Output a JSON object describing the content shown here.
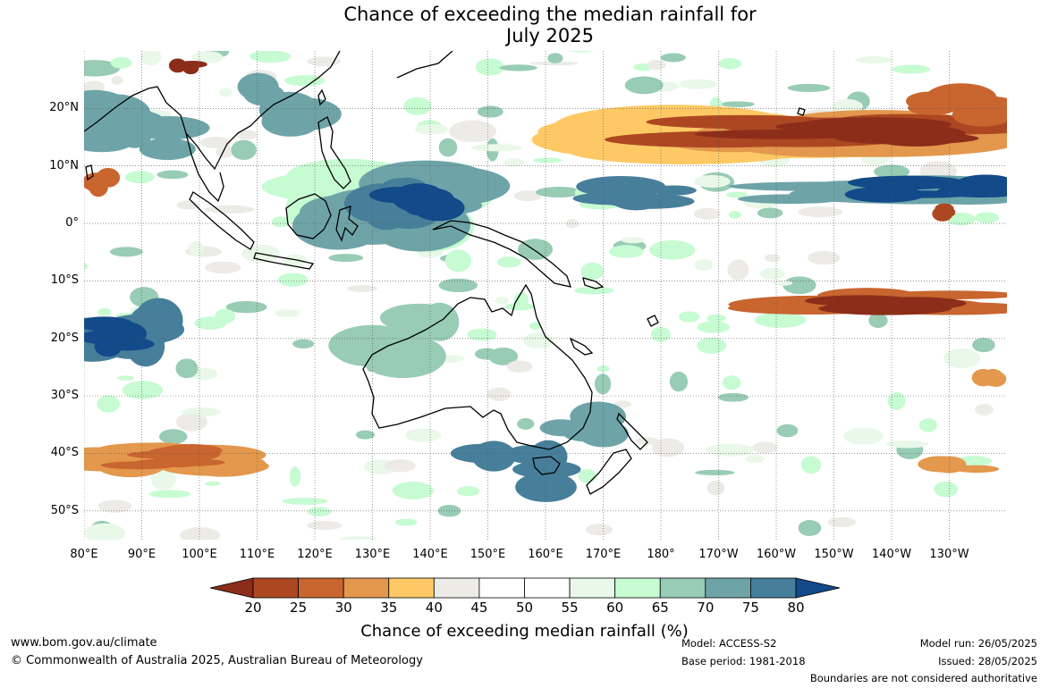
{
  "title": {
    "line1": "Chance of exceeding the median rainfall for",
    "line2": "July 2025"
  },
  "map": {
    "lat_labels": [
      "20°N",
      "10°N",
      "0°",
      "10°S",
      "20°S",
      "30°S",
      "40°S",
      "50°S"
    ],
    "lon_labels": [
      "80°E",
      "90°E",
      "100°E",
      "110°E",
      "120°E",
      "130°E",
      "140°E",
      "150°E",
      "160°E",
      "170°E",
      "180°",
      "170°W",
      "160°W",
      "150°W",
      "140°W",
      "130°W"
    ],
    "lat_range": [
      -55,
      30
    ],
    "lon_range": [
      80,
      240
    ],
    "background_color": "#ffffff",
    "coastline_color": "#000000",
    "border_color": "#808080"
  },
  "colorbar": {
    "ticks": [
      "20",
      "25",
      "30",
      "35",
      "40",
      "45",
      "50",
      "55",
      "60",
      "65",
      "70",
      "75",
      "80"
    ],
    "colors": [
      "#8c2d1a",
      "#ad4722",
      "#c9652f",
      "#e3984d",
      "#fec965",
      "#ecebe6",
      "#ffffff",
      "#ffffff",
      "#e9f8e9",
      "#c7fbd2",
      "#98ccb4",
      "#6ea4a8",
      "#477f9a",
      "#134a89"
    ],
    "label": "Chance of exceeding median rainfall (%)"
  },
  "footer": {
    "url": "www.bom.gov.au/climate",
    "copyright": "© Commonwealth of Australia 2025, Australian Bureau of Meteorology",
    "model": "Model: ACCESS-S2",
    "base_period": "Base period: 1981-2018",
    "model_run": "Model run: 26/05/2025",
    "issued": "Issued: 28/05/2025",
    "disclaimer": "Boundaries are not considered authoritative"
  }
}
